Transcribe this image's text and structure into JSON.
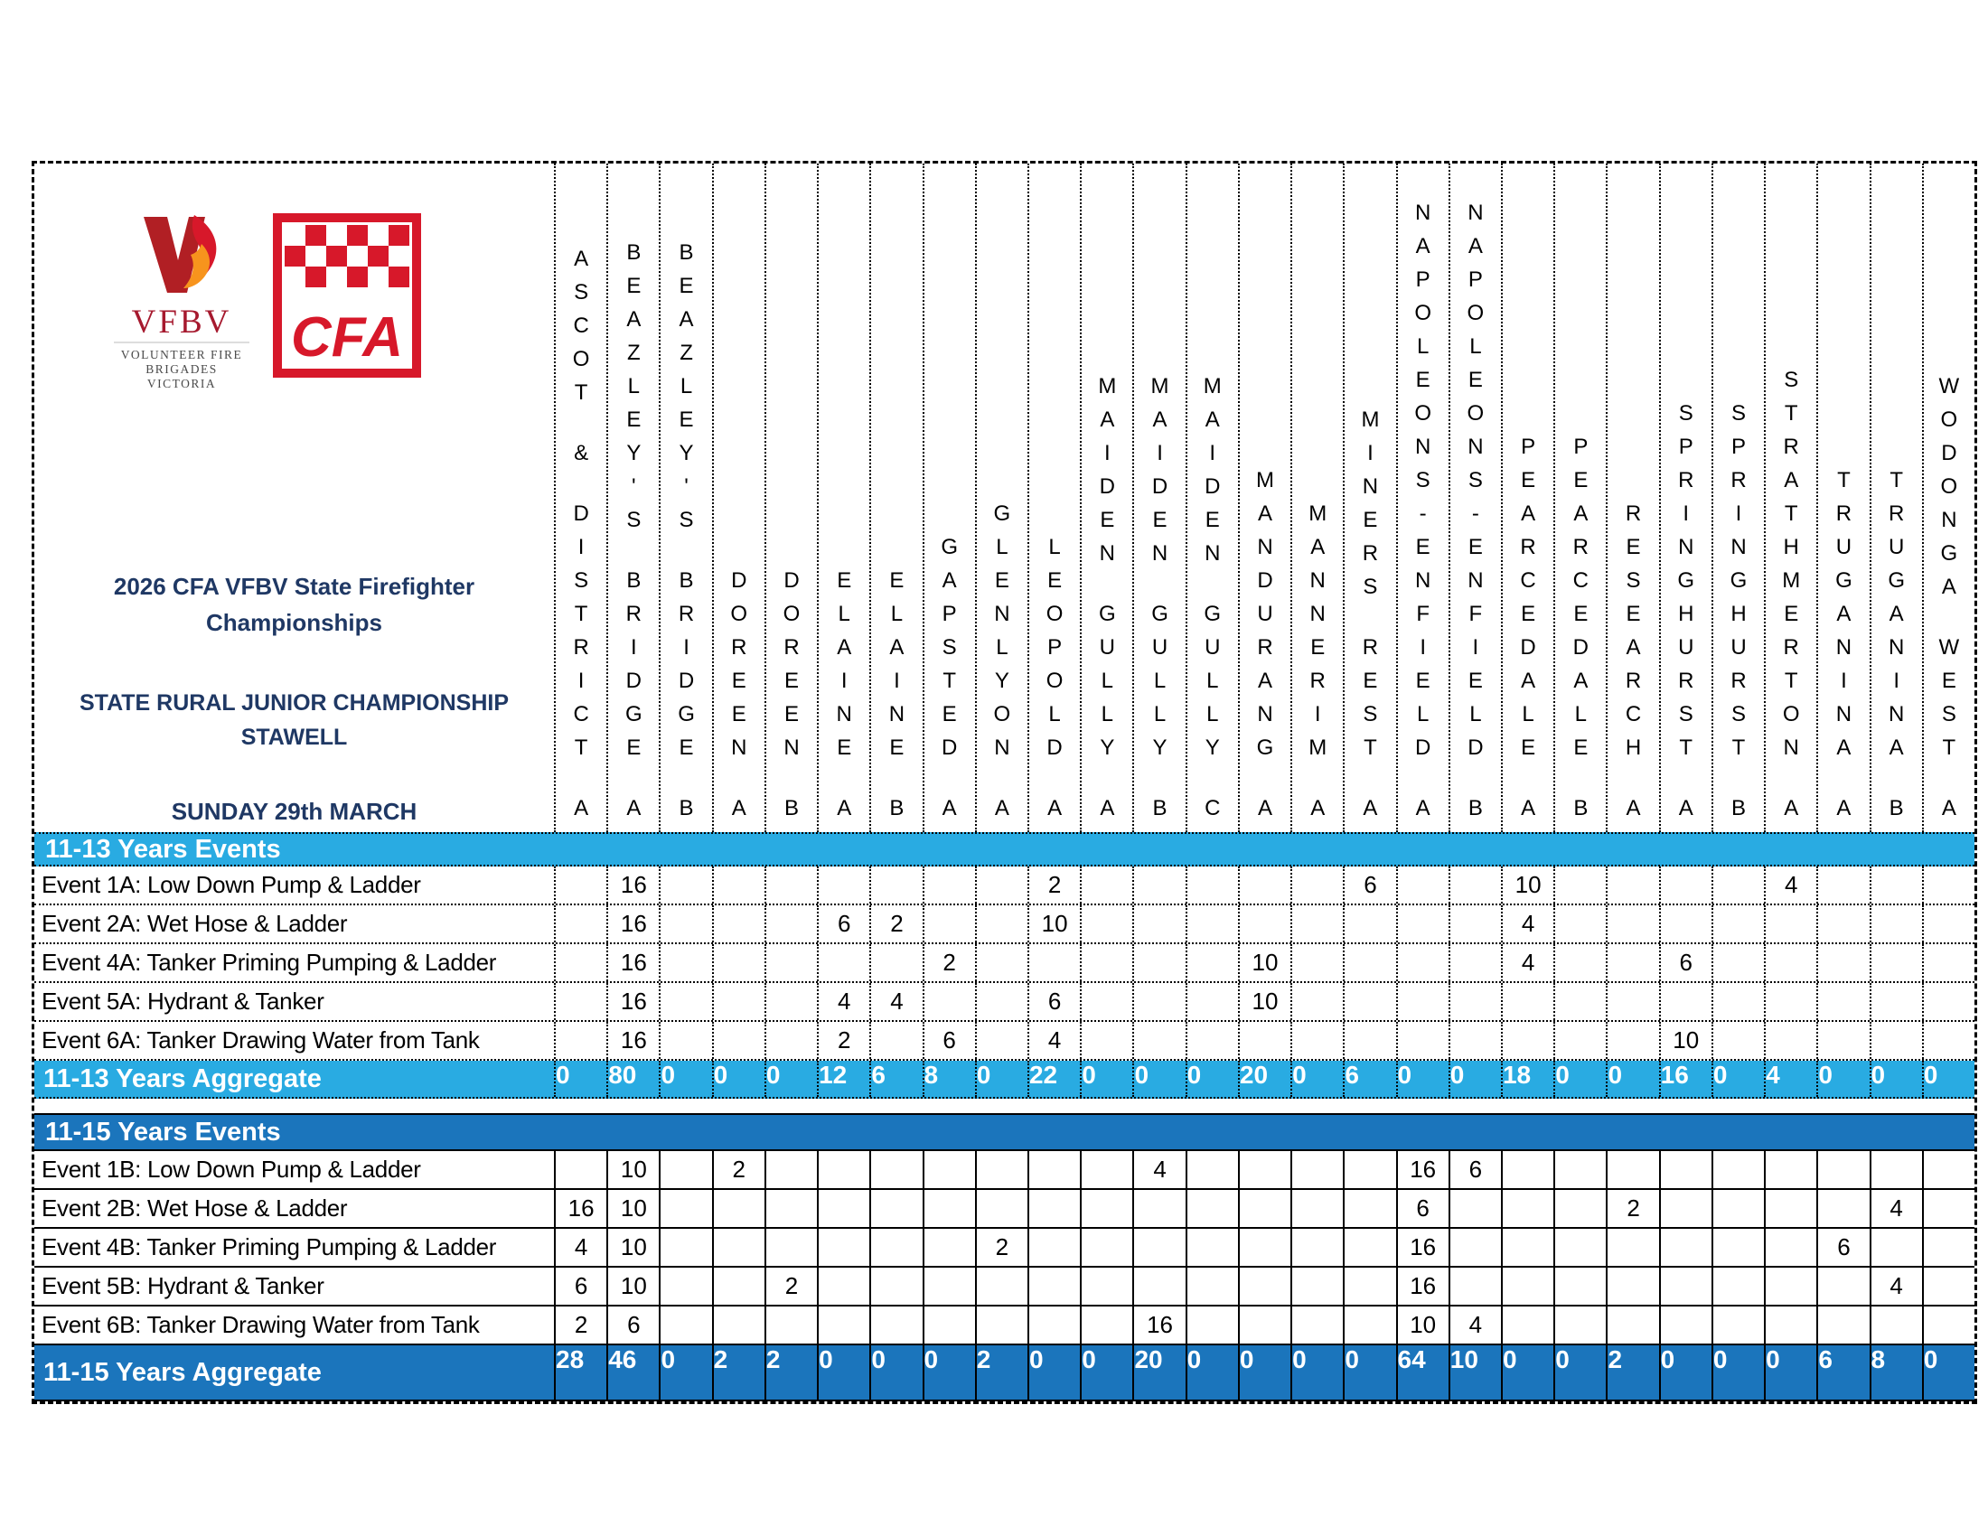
{
  "header": {
    "title": "2026 CFA VFBV State Firefighter Championships",
    "subtitle": "STATE RURAL JUNIOR CHAMPIONSHIP STAWELL",
    "date": "SUNDAY 29th MARCH",
    "logos": {
      "vfbv_acronym": "VFBV",
      "vfbv_line1": "VOLUNTEER FIRE",
      "vfbv_line2": "BRIGADES VICTORIA",
      "cfa_text": "CFA"
    }
  },
  "colors": {
    "light_band": "#29ABE2",
    "dark_band": "#1B75BC",
    "title_text": "#1F3864",
    "cfa_red": "#D7182A",
    "vfbv_red": "#A6192E",
    "flame_orange": "#F7941D"
  },
  "teams": [
    {
      "name": "ASCOT & DISTRICT",
      "designator": "A"
    },
    {
      "name": "BEAZLEY'S BRIDGE",
      "designator": "A"
    },
    {
      "name": "BEAZLEY'S BRIDGE",
      "designator": "B"
    },
    {
      "name": "DOREEN",
      "designator": "A"
    },
    {
      "name": "DOREEN",
      "designator": "B"
    },
    {
      "name": "ELAINE",
      "designator": "A"
    },
    {
      "name": "ELAINE",
      "designator": "B"
    },
    {
      "name": "GAPSTED",
      "designator": "A"
    },
    {
      "name": "GLENLYON",
      "designator": "A"
    },
    {
      "name": "LEOPOLD",
      "designator": "A"
    },
    {
      "name": "MAIDEN GULLY",
      "designator": "A"
    },
    {
      "name": "MAIDEN GULLY",
      "designator": "B"
    },
    {
      "name": "MAIDEN GULLY",
      "designator": "C"
    },
    {
      "name": "MANDURANG",
      "designator": "A"
    },
    {
      "name": "MANNERIM",
      "designator": "A"
    },
    {
      "name": "MINERS REST",
      "designator": "A"
    },
    {
      "name": "NAPOLEONS-ENFIELD",
      "designator": "A"
    },
    {
      "name": "NAPOLEONS-ENFIELD",
      "designator": "B"
    },
    {
      "name": "PEARCEDALE",
      "designator": "A"
    },
    {
      "name": "PEARCEDALE",
      "designator": "B"
    },
    {
      "name": "RESEARCH",
      "designator": "A"
    },
    {
      "name": "SPRINGHURST",
      "designator": "A"
    },
    {
      "name": "SPRINGHURST",
      "designator": "B"
    },
    {
      "name": "STRATHMERTON",
      "designator": "A"
    },
    {
      "name": "TRUGANINA",
      "designator": "A"
    },
    {
      "name": "TRUGANINA",
      "designator": "B"
    },
    {
      "name": "WODONGA WEST",
      "designator": "A"
    }
  ],
  "sections": [
    {
      "header": "11-13 Years Events",
      "aggregate_label": "11-13 Years Aggregate",
      "theme": "light",
      "events": [
        {
          "label": "Event 1A: Low Down Pump & Ladder",
          "scores": [
            "",
            "16",
            "",
            "",
            "",
            "",
            "",
            "",
            "",
            "2",
            "",
            "",
            "",
            "",
            "",
            "6",
            "",
            "",
            "10",
            "",
            "",
            "",
            "",
            "4",
            "",
            "",
            ""
          ]
        },
        {
          "label": "Event 2A: Wet Hose & Ladder",
          "scores": [
            "",
            "16",
            "",
            "",
            "",
            "6",
            "2",
            "",
            "",
            "10",
            "",
            "",
            "",
            "",
            "",
            "",
            "",
            "",
            "4",
            "",
            "",
            "",
            "",
            "",
            "",
            "",
            ""
          ]
        },
        {
          "label": "Event 4A: Tanker Priming Pumping & Ladder",
          "scores": [
            "",
            "16",
            "",
            "",
            "",
            "",
            "",
            "2",
            "",
            "",
            "",
            "",
            "",
            "10",
            "",
            "",
            "",
            "",
            "4",
            "",
            "",
            "6",
            "",
            "",
            "",
            "",
            ""
          ]
        },
        {
          "label": "Event 5A: Hydrant & Tanker",
          "scores": [
            "",
            "16",
            "",
            "",
            "",
            "4",
            "4",
            "",
            "",
            "6",
            "",
            "",
            "",
            "10",
            "",
            "",
            "",
            "",
            "",
            "",
            "",
            "",
            "",
            "",
            "",
            "",
            ""
          ]
        },
        {
          "label": "Event 6A: Tanker Drawing Water from Tank",
          "scores": [
            "",
            "16",
            "",
            "",
            "",
            "2",
            "",
            "6",
            "",
            "4",
            "",
            "",
            "",
            "",
            "",
            "",
            "",
            "",
            "",
            "",
            "",
            "10",
            "",
            "",
            "",
            "",
            ""
          ]
        }
      ],
      "aggregate": [
        "0",
        "80",
        "0",
        "0",
        "0",
        "12",
        "6",
        "8",
        "0",
        "22",
        "0",
        "0",
        "0",
        "20",
        "0",
        "6",
        "0",
        "0",
        "18",
        "0",
        "0",
        "16",
        "0",
        "4",
        "0",
        "0",
        "0"
      ]
    },
    {
      "header": "11-15 Years Events",
      "aggregate_label": "11-15 Years Aggregate",
      "theme": "dark",
      "events": [
        {
          "label": "Event 1B: Low Down Pump & Ladder",
          "scores": [
            "",
            "10",
            "",
            "2",
            "",
            "",
            "",
            "",
            "",
            "",
            "",
            "4",
            "",
            "",
            "",
            "",
            "16",
            "6",
            "",
            "",
            "",
            "",
            "",
            "",
            "",
            "",
            ""
          ]
        },
        {
          "label": "Event 2B: Wet Hose & Ladder",
          "scores": [
            "16",
            "10",
            "",
            "",
            "",
            "",
            "",
            "",
            "",
            "",
            "",
            "",
            "",
            "",
            "",
            "",
            "6",
            "",
            "",
            "",
            "2",
            "",
            "",
            "",
            "",
            "4",
            ""
          ]
        },
        {
          "label": "Event 4B: Tanker Priming Pumping & Ladder",
          "scores": [
            "4",
            "10",
            "",
            "",
            "",
            "",
            "",
            "",
            "2",
            "",
            "",
            "",
            "",
            "",
            "",
            "",
            "16",
            "",
            "",
            "",
            "",
            "",
            "",
            "",
            "6",
            "",
            ""
          ]
        },
        {
          "label": "Event 5B: Hydrant & Tanker",
          "scores": [
            "6",
            "10",
            "",
            "",
            "2",
            "",
            "",
            "",
            "",
            "",
            "",
            "",
            "",
            "",
            "",
            "",
            "16",
            "",
            "",
            "",
            "",
            "",
            "",
            "",
            "",
            "4",
            ""
          ]
        },
        {
          "label": "Event 6B: Tanker Drawing Water from Tank",
          "scores": [
            "2",
            "6",
            "",
            "",
            "",
            "",
            "",
            "",
            "",
            "",
            "",
            "16",
            "",
            "",
            "",
            "",
            "10",
            "4",
            "",
            "",
            "",
            "",
            "",
            "",
            "",
            "",
            ""
          ]
        }
      ],
      "aggregate": [
        "28",
        "46",
        "0",
        "2",
        "2",
        "0",
        "0",
        "0",
        "2",
        "0",
        "0",
        "20",
        "0",
        "0",
        "0",
        "0",
        "64",
        "10",
        "0",
        "0",
        "2",
        "0",
        "0",
        "0",
        "6",
        "8",
        "0"
      ]
    }
  ]
}
